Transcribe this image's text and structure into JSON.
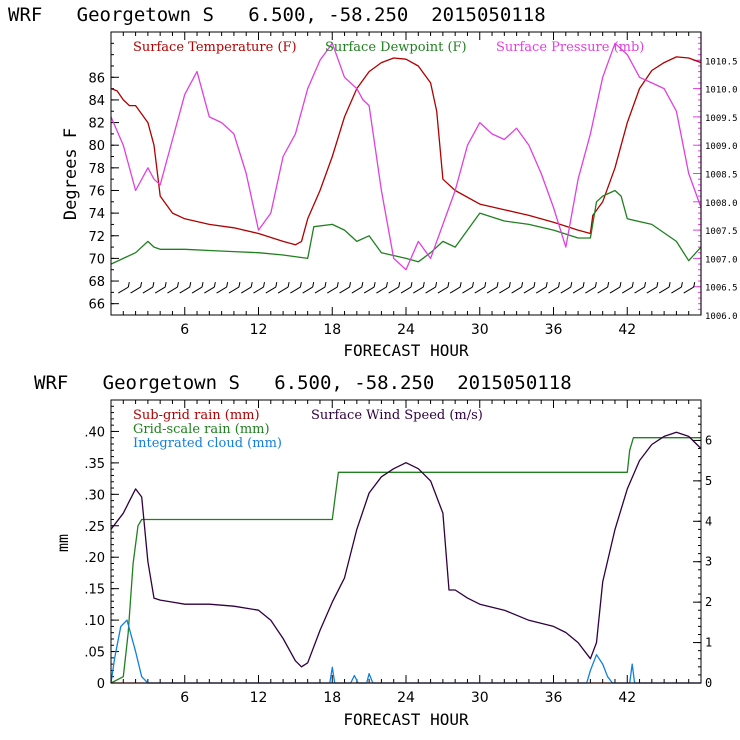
{
  "colors": {
    "axis": "#000000",
    "temperature": "#b00000",
    "dewpoint": "#208020",
    "pressure": "#e040e0",
    "subgrid_rain": "#b00000",
    "gridscale_rain": "#208020",
    "cloud": "#1080e0",
    "wind": "#300040"
  },
  "chart_data": [
    {
      "type": "line",
      "title": "WRF   Georgetown S   6.500, -58.250  2015050118",
      "xlabel": "FORECAST HOUR",
      "ylabel": "Degrees F",
      "xlim": [
        0,
        48
      ],
      "ylim": [
        65,
        90
      ],
      "ylim_right": [
        1006.0,
        1011.0
      ],
      "xticks": [
        "6",
        "12",
        "18",
        "24",
        "30",
        "36",
        "42"
      ],
      "yticks_left": [
        "66",
        "68",
        "70",
        "72",
        "74",
        "76",
        "78",
        "80",
        "82",
        "84",
        "86"
      ],
      "yticks_right": [
        "1006.0",
        "1006.5",
        "1007.0",
        "1007.5",
        "1008.0",
        "1008.5",
        "1009.0",
        "1009.5",
        "1010.0",
        "1010.5"
      ],
      "legend": [
        "Surface Temperature (F)",
        "Surface Dewpoint (F)",
        "Surface Pressure (mb)"
      ],
      "series": [
        {
          "name": "Surface Temperature (F)",
          "axis": "left",
          "x": [
            0,
            0.5,
            1,
            1.5,
            2,
            3,
            3.5,
            4,
            5,
            6,
            8,
            10,
            12,
            14,
            15,
            15.5,
            16,
            17,
            18,
            19,
            20,
            21,
            22,
            23,
            24,
            25,
            26,
            26.5,
            27,
            28,
            30,
            32,
            34,
            36,
            38,
            39,
            39.2,
            40,
            41,
            42,
            43,
            44,
            45,
            46,
            47,
            48
          ],
          "values": [
            85.0,
            84.8,
            84.0,
            83.5,
            83.5,
            82.0,
            80.0,
            75.5,
            74.0,
            73.5,
            73.0,
            72.7,
            72.2,
            71.5,
            71.2,
            71.5,
            73.5,
            76.0,
            79.0,
            82.5,
            85.0,
            86.5,
            87.3,
            87.7,
            87.6,
            87.0,
            85.5,
            83.0,
            77.0,
            76.0,
            74.8,
            74.3,
            73.8,
            73.2,
            72.5,
            72.2,
            73.8,
            75.0,
            78.0,
            82.0,
            85.0,
            86.6,
            87.3,
            87.8,
            87.7,
            87.3
          ]
        },
        {
          "name": "Surface Dewpoint (F)",
          "axis": "left",
          "x": [
            0,
            1,
            2,
            3,
            3.5,
            4,
            6,
            8,
            10,
            12,
            14,
            16,
            16.5,
            18,
            19,
            20,
            21,
            22,
            24,
            25,
            26,
            27,
            28,
            29,
            30,
            32,
            34,
            36,
            38,
            39,
            39.5,
            40,
            41,
            41.5,
            42,
            44,
            46,
            47,
            48
          ],
          "values": [
            69.5,
            70.0,
            70.5,
            71.5,
            71.0,
            70.8,
            70.8,
            70.7,
            70.6,
            70.5,
            70.3,
            70.0,
            72.8,
            73.0,
            72.5,
            71.5,
            72.0,
            70.5,
            70.0,
            69.7,
            70.5,
            71.5,
            71.0,
            72.5,
            74.0,
            73.3,
            73.0,
            72.5,
            71.8,
            71.8,
            75.0,
            75.5,
            76.0,
            75.5,
            73.5,
            73.0,
            71.5,
            69.8,
            71.0
          ]
        },
        {
          "name": "Surface Pressure (mb)",
          "axis": "right",
          "x": [
            0,
            1,
            2,
            3,
            3.5,
            4,
            5,
            6,
            7,
            8,
            9,
            10,
            11,
            12,
            13,
            14,
            15,
            16,
            17,
            18,
            19,
            20,
            20.5,
            21,
            22,
            23,
            24,
            25,
            26,
            27,
            28,
            29,
            30,
            31,
            32,
            33,
            34,
            35,
            36,
            37,
            38,
            39,
            40,
            41,
            42,
            43,
            44,
            45,
            46,
            47,
            48
          ],
          "values": [
            1009.5,
            1009.0,
            1008.2,
            1008.6,
            1008.4,
            1008.3,
            1009.1,
            1009.9,
            1010.3,
            1009.5,
            1009.4,
            1009.2,
            1008.5,
            1007.5,
            1007.8,
            1008.8,
            1009.2,
            1010.0,
            1010.5,
            1010.8,
            1010.2,
            1010.0,
            1009.8,
            1009.7,
            1008.2,
            1007.0,
            1006.8,
            1007.3,
            1007.0,
            1007.6,
            1008.2,
            1009.0,
            1009.4,
            1009.2,
            1009.1,
            1009.3,
            1009.0,
            1008.5,
            1007.9,
            1007.2,
            1008.4,
            1009.2,
            1010.2,
            1010.8,
            1010.6,
            1010.2,
            1010.1,
            1010.0,
            1009.6,
            1008.5,
            1007.9
          ]
        }
      ],
      "wind_barbs_row": true
    },
    {
      "type": "line",
      "title": "WRF   Georgetown S   6.500, -58.250  2015050118",
      "xlabel": "FORECAST HOUR",
      "ylabel": "mm",
      "xlim": [
        0,
        48
      ],
      "ylim": [
        0,
        0.45
      ],
      "ylim_right": [
        0,
        7
      ],
      "xticks": [
        "6",
        "12",
        "18",
        "24",
        "30",
        "36",
        "42"
      ],
      "yticks_left": [
        "0",
        ".05",
        ".10",
        ".15",
        ".20",
        ".25",
        ".30",
        ".35",
        ".40"
      ],
      "yticks_right": [
        "0",
        "1",
        "2",
        "3",
        "4",
        "5",
        "6"
      ],
      "legend": [
        "Sub-grid rain (mm)",
        "Grid-scale rain (mm)",
        "Integrated cloud (mm)",
        "Surface Wind Speed (m/s)"
      ],
      "series": [
        {
          "name": "Sub-grid rain (mm)",
          "axis": "left",
          "x": [
            0,
            48
          ],
          "values": [
            0,
            0
          ]
        },
        {
          "name": "Grid-scale rain (mm)",
          "axis": "left",
          "x": [
            0,
            1,
            1.4,
            1.8,
            2.2,
            2.5,
            3,
            18,
            18.2,
            18.5,
            42,
            42.2,
            42.5,
            48
          ],
          "values": [
            0,
            0.01,
            0.08,
            0.19,
            0.25,
            0.26,
            0.26,
            0.26,
            0.29,
            0.335,
            0.335,
            0.37,
            0.39,
            0.39
          ]
        },
        {
          "name": "Integrated cloud (mm)",
          "axis": "left",
          "x": [
            0,
            0.3,
            0.8,
            1.3,
            2,
            2.5,
            3,
            17.8,
            18,
            18.2,
            19.5,
            19.8,
            20.1,
            20.8,
            21.0,
            21.3,
            38.7,
            39,
            39.5,
            40,
            40.4,
            40.8,
            42.2,
            42.4,
            42.6,
            48
          ],
          "values": [
            0,
            0.04,
            0.09,
            0.1,
            0.05,
            0.01,
            0,
            0,
            0.025,
            0,
            0,
            0.012,
            0,
            0,
            0.015,
            0,
            0,
            0.02,
            0.045,
            0.03,
            0.01,
            0,
            0,
            0.03,
            0,
            0
          ]
        },
        {
          "name": "Surface Wind Speed (m/s)",
          "axis": "right",
          "x": [
            0,
            0.5,
            1,
            1.5,
            2,
            2.5,
            3,
            3.5,
            4,
            5,
            6,
            8,
            10,
            12,
            13,
            14,
            15,
            15.5,
            16,
            17,
            18,
            19,
            20,
            21,
            22,
            23,
            24,
            25,
            26,
            27,
            27.5,
            28,
            29,
            30,
            32,
            34,
            36,
            37,
            38,
            39,
            39.5,
            40,
            41,
            42,
            43,
            44,
            45,
            46,
            47,
            48
          ],
          "values": [
            3.8,
            4.0,
            4.2,
            4.5,
            4.8,
            4.6,
            3.0,
            2.1,
            2.05,
            2.0,
            1.95,
            1.95,
            1.9,
            1.8,
            1.55,
            1.1,
            0.55,
            0.4,
            0.5,
            1.3,
            2.0,
            2.6,
            3.8,
            4.7,
            5.1,
            5.3,
            5.45,
            5.3,
            5.0,
            4.2,
            2.3,
            2.3,
            2.1,
            1.95,
            1.8,
            1.55,
            1.4,
            1.25,
            1.0,
            0.6,
            1.0,
            2.5,
            3.8,
            4.8,
            5.5,
            5.9,
            6.1,
            6.2,
            6.1,
            5.8
          ]
        }
      ]
    }
  ]
}
